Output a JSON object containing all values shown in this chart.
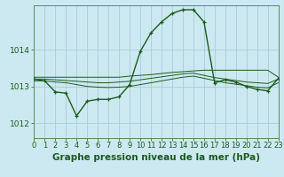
{
  "background_color": "#cce8f0",
  "grid_color": "#aaccda",
  "line_color": "#1a5c1a",
  "title": "Graphe pression niveau de la mer (hPa)",
  "xlim": [
    0,
    23
  ],
  "ylim": [
    1011.6,
    1015.2
  ],
  "yticks": [
    1012,
    1013,
    1014
  ],
  "xticks": [
    0,
    1,
    2,
    3,
    4,
    5,
    6,
    7,
    8,
    9,
    10,
    11,
    12,
    13,
    14,
    15,
    16,
    17,
    18,
    19,
    20,
    21,
    22,
    23
  ],
  "flat1_x": [
    0,
    1,
    2,
    3,
    4,
    5,
    6,
    7,
    8,
    9,
    10,
    11,
    12,
    13,
    14,
    15,
    16,
    17,
    18,
    19,
    20,
    21,
    22,
    23
  ],
  "flat1_y": [
    1013.25,
    1013.25,
    1013.25,
    1013.25,
    1013.25,
    1013.25,
    1013.25,
    1013.25,
    1013.25,
    1013.28,
    1013.3,
    1013.32,
    1013.35,
    1013.38,
    1013.4,
    1013.42,
    1013.44,
    1013.44,
    1013.44,
    1013.44,
    1013.44,
    1013.44,
    1013.44,
    1013.25
  ],
  "flat2_x": [
    0,
    1,
    2,
    3,
    4,
    5,
    6,
    7,
    8,
    9,
    10,
    11,
    12,
    13,
    14,
    15,
    16,
    17,
    18,
    19,
    20,
    21,
    22,
    23
  ],
  "flat2_y": [
    1013.2,
    1013.2,
    1013.18,
    1013.16,
    1013.14,
    1013.12,
    1013.1,
    1013.1,
    1013.12,
    1013.14,
    1013.18,
    1013.22,
    1013.26,
    1013.3,
    1013.34,
    1013.36,
    1013.3,
    1013.24,
    1013.2,
    1013.16,
    1013.12,
    1013.1,
    1013.08,
    1013.2
  ],
  "flat3_x": [
    0,
    1,
    2,
    3,
    4,
    5,
    6,
    7,
    8,
    9,
    10,
    11,
    12,
    13,
    14,
    15,
    16,
    17,
    18,
    19,
    20,
    21,
    22,
    23
  ],
  "flat3_y": [
    1013.15,
    1013.15,
    1013.12,
    1013.1,
    1013.05,
    1013.0,
    1012.98,
    1012.97,
    1012.98,
    1013.0,
    1013.05,
    1013.1,
    1013.15,
    1013.2,
    1013.25,
    1013.28,
    1013.22,
    1013.16,
    1013.1,
    1013.06,
    1013.02,
    1012.98,
    1012.96,
    1013.1
  ],
  "main_x": [
    0,
    1,
    2,
    3,
    4,
    5,
    6,
    7,
    8,
    9,
    10,
    11,
    12,
    13,
    14,
    15,
    16,
    17,
    18,
    19,
    20,
    21,
    22,
    23
  ],
  "main_y": [
    1013.2,
    1013.15,
    1012.85,
    1012.82,
    1012.2,
    1012.6,
    1012.65,
    1012.65,
    1012.72,
    1013.05,
    1013.95,
    1014.45,
    1014.75,
    1014.98,
    1015.08,
    1015.08,
    1014.75,
    1013.1,
    1013.18,
    1013.12,
    1013.0,
    1012.92,
    1012.88,
    1013.22
  ],
  "title_fontsize": 7.5,
  "tick_fontsize": 6
}
